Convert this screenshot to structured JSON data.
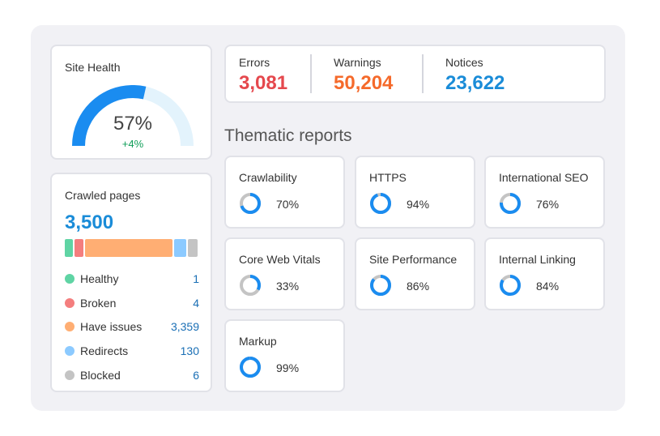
{
  "site_health": {
    "label": "Site Health",
    "percent_text": "57%",
    "percent_value": 57,
    "delta": "+4%",
    "colors": {
      "fill": "#1a8cf0",
      "track": "#e3f3fc",
      "delta": "#0f9d58"
    }
  },
  "issues": [
    {
      "label": "Errors",
      "value": "3,081",
      "color": "#e5484d"
    },
    {
      "label": "Warnings",
      "value": "50,204",
      "color": "#f56a2b"
    },
    {
      "label": "Notices",
      "value": "23,622",
      "color": "#1a8cd8"
    }
  ],
  "crawled": {
    "label": "Crawled pages",
    "total": "3,500",
    "legend": [
      {
        "name": "Healthy",
        "value": "1",
        "color": "#5fd4a4"
      },
      {
        "name": "Broken",
        "value": "4",
        "color": "#f47e7e"
      },
      {
        "name": "Have issues",
        "value": "3,359",
        "color": "#ffae73"
      },
      {
        "name": "Redirects",
        "value": "130",
        "color": "#8ccaff"
      },
      {
        "name": "Blocked",
        "value": "6",
        "color": "#c4c4c4"
      }
    ]
  },
  "thematic": {
    "title": "Thematic reports",
    "reports": [
      {
        "name": "Crawlability",
        "percent_text": "70%",
        "value": 70
      },
      {
        "name": "HTTPS",
        "percent_text": "94%",
        "value": 94
      },
      {
        "name": "International SEO",
        "percent_text": "76%",
        "value": 76
      },
      {
        "name": "Core Web Vitals",
        "percent_text": "33%",
        "value": 33
      },
      {
        "name": "Site Performance",
        "percent_text": "86%",
        "value": 86
      },
      {
        "name": "Internal Linking",
        "percent_text": "84%",
        "value": 84
      },
      {
        "name": "Markup",
        "percent_text": "99%",
        "value": 99
      }
    ],
    "colors": {
      "fill": "#1a8cf0",
      "track": "#c4c4c4"
    }
  }
}
